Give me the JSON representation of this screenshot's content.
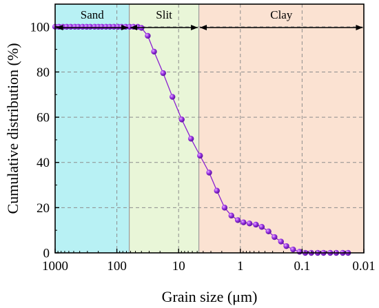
{
  "chart_data": {
    "type": "line",
    "title": "",
    "xlabel": "Grain size (μm)",
    "ylabel": "Cumulative distribution (%)",
    "x_scale": "log",
    "x_reversed": true,
    "xlim": [
      1000,
      0.01
    ],
    "ylim": [
      0,
      110
    ],
    "x_ticks": [
      1000,
      100,
      10,
      1,
      0.1,
      0.01
    ],
    "x_tick_labels": [
      "1000",
      "100",
      "10",
      "1",
      "0.1",
      "0.01"
    ],
    "y_ticks": [
      0,
      20,
      40,
      60,
      80,
      100
    ],
    "y_tick_labels": [
      "0",
      "20",
      "40",
      "60",
      "80",
      "100"
    ],
    "grid": true,
    "regions": [
      {
        "label": "Sand",
        "x_from": 1000,
        "x_to": 63,
        "color": "#b8f1f4"
      },
      {
        "label": "Slit",
        "x_from": 63,
        "x_to": 4.7,
        "color": "#e9f6d8"
      },
      {
        "label": "Clay",
        "x_from": 4.7,
        "x_to": 0.01,
        "color": "#fbe2d2"
      }
    ],
    "series": [
      {
        "color": "#8a1fd0",
        "marker": "circle",
        "x": [
          1000,
          870,
          750,
          650,
          560,
          480,
          420,
          360,
          310,
          270,
          230,
          200,
          175,
          150,
          130,
          112,
          96,
          84,
          72,
          62,
          54,
          46,
          40,
          31.6,
          25,
          17.8,
          12.6,
          8.9,
          6.3,
          4.5,
          3.2,
          2.4,
          1.8,
          1.4,
          1.1,
          0.89,
          0.71,
          0.56,
          0.45,
          0.35,
          0.28,
          0.22,
          0.18,
          0.14,
          0.11,
          0.089,
          0.071,
          0.056,
          0.045,
          0.035,
          0.028,
          0.022,
          0.018
        ],
        "y": [
          100,
          100,
          100,
          100,
          100,
          100,
          100,
          100,
          100,
          100,
          100,
          100,
          100,
          100,
          100,
          100,
          100,
          100,
          100,
          100,
          100,
          100,
          99.5,
          96,
          89,
          79.5,
          69,
          59,
          50.5,
          43,
          35.5,
          27.5,
          20,
          16.5,
          14.5,
          13.5,
          13,
          12.5,
          11.5,
          9.5,
          7,
          5,
          3,
          1.5,
          0.5,
          0,
          0,
          0,
          0,
          0,
          0,
          0,
          0
        ]
      }
    ]
  }
}
